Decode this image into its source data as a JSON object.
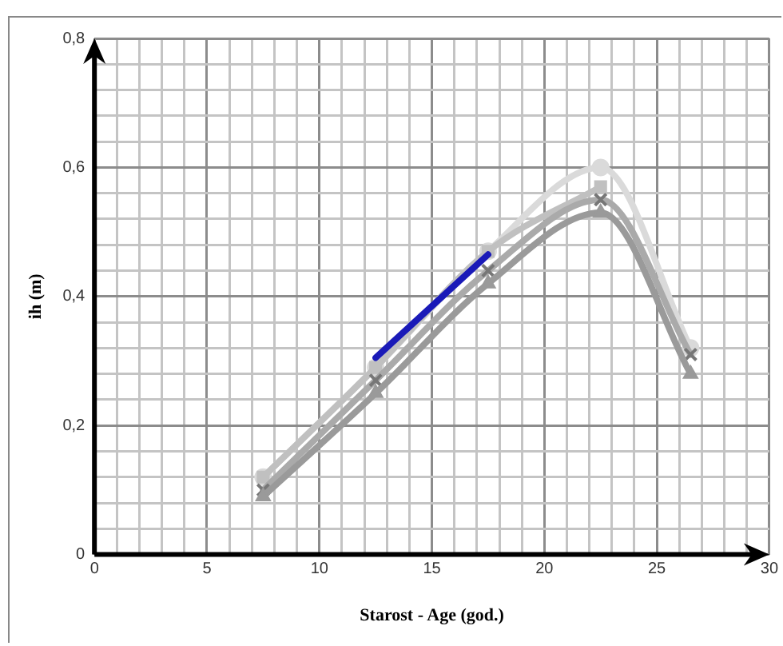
{
  "chart_data": {
    "type": "line",
    "xlabel": "Starost - Age (god.)",
    "ylabel": "ih (m)",
    "xlim": [
      0,
      30
    ],
    "ylim": [
      0,
      0.8
    ],
    "xticks": [
      0,
      {
        "value": 1,
        "label": null
      },
      {
        "value": 2,
        "label": null
      },
      {
        "value": 3,
        "label": null
      },
      {
        "value": 4,
        "label": null
      },
      5,
      {
        "value": 6,
        "label": null
      },
      {
        "value": 7,
        "label": null
      },
      {
        "value": 8,
        "label": null
      },
      {
        "value": 9,
        "label": null
      },
      10,
      {
        "value": 11,
        "label": null
      },
      {
        "value": 12,
        "label": null
      },
      {
        "value": 13,
        "label": null
      },
      {
        "value": 14,
        "label": null
      },
      15,
      {
        "value": 16,
        "label": null
      },
      {
        "value": 17,
        "label": null
      },
      {
        "value": 18,
        "label": null
      },
      {
        "value": 19,
        "label": null
      },
      20,
      {
        "value": 21,
        "label": null
      },
      {
        "value": 22,
        "label": null
      },
      {
        "value": 23,
        "label": null
      },
      {
        "value": 24,
        "label": null
      },
      25,
      {
        "value": 26,
        "label": null
      },
      {
        "value": 27,
        "label": null
      },
      {
        "value": 28,
        "label": null
      },
      {
        "value": 29,
        "label": null
      },
      30
    ],
    "yticks": [
      {
        "value": 0,
        "label": "0"
      },
      {
        "value": 0.04,
        "label": null
      },
      {
        "value": 0.08,
        "label": null
      },
      {
        "value": 0.12,
        "label": null
      },
      {
        "value": 0.16,
        "label": null
      },
      {
        "value": 0.2,
        "label": "0,2"
      },
      {
        "value": 0.24,
        "label": null
      },
      {
        "value": 0.28,
        "label": null
      },
      {
        "value": 0.32,
        "label": null
      },
      {
        "value": 0.36,
        "label": null
      },
      {
        "value": 0.4,
        "label": "0,4"
      },
      {
        "value": 0.44,
        "label": null
      },
      {
        "value": 0.48,
        "label": null
      },
      {
        "value": 0.52,
        "label": null
      },
      {
        "value": 0.56,
        "label": null
      },
      {
        "value": 0.6,
        "label": "0,6"
      },
      {
        "value": 0.64,
        "label": null
      },
      {
        "value": 0.68,
        "label": null
      },
      {
        "value": 0.72,
        "label": null
      },
      {
        "value": 0.76,
        "label": null
      },
      {
        "value": 0.8,
        "label": "0,8"
      }
    ],
    "grid": true,
    "legend": false,
    "series": [
      {
        "color": "#dadada",
        "marker": "circle",
        "x": [
          7.5,
          12.5,
          17.5,
          22.5,
          26.5
        ],
        "values": [
          0.12,
          0.29,
          0.47,
          0.6,
          0.32
        ]
      },
      {
        "color": "#c0c0c0",
        "marker": "square",
        "x": [
          7.5,
          12.5,
          17.5,
          22.5
        ],
        "values": [
          0.12,
          0.29,
          0.47,
          0.57
        ]
      },
      {
        "color": "#aaaaaa",
        "marker": "cross",
        "x": [
          7.5,
          12.5,
          17.5,
          22.5,
          26.5
        ],
        "values": [
          0.1,
          0.27,
          0.44,
          0.55,
          0.31
        ]
      },
      {
        "color": "#9a9a9a",
        "marker": "triangle",
        "x": [
          7.5,
          12.5,
          17.5,
          22.5,
          26.5
        ],
        "values": [
          0.09,
          0.25,
          0.42,
          0.53,
          0.28
        ]
      },
      {
        "color": "#1a1ab8",
        "marker": "none",
        "x": [
          12.5,
          17.5
        ],
        "values": [
          0.305,
          0.465
        ]
      }
    ]
  }
}
